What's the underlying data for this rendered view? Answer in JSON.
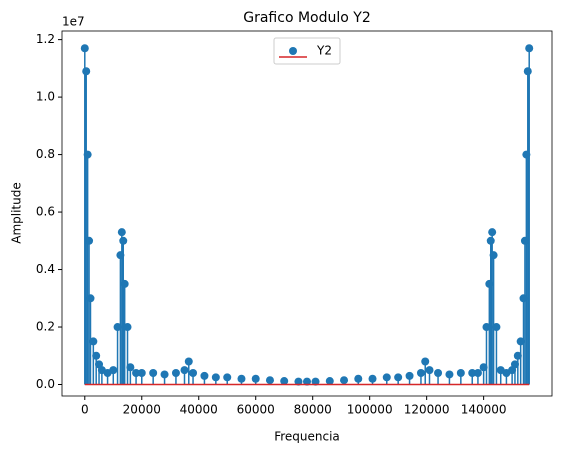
{
  "chart_data": {
    "type": "stem",
    "title": "Grafico Modulo Y2",
    "xlabel": "Frequencia",
    "ylabel": "Amplitude",
    "y_offset": "1e7",
    "x": [
      0,
      500,
      1000,
      1500,
      2000,
      3000,
      4000,
      5000,
      6000,
      8000,
      10000,
      11500,
      12500,
      13000,
      13500,
      14000,
      15000,
      16000,
      18000,
      20000,
      24000,
      28000,
      32000,
      35000,
      36500,
      38000,
      42000,
      46000,
      50000,
      55000,
      60000,
      65000,
      70000,
      75000,
      78000,
      81000,
      86000,
      91000,
      96000,
      101000,
      106000,
      110000,
      114000,
      118000,
      119500,
      121000,
      124000,
      128000,
      132000,
      136000,
      138000,
      140000,
      141000,
      142000,
      142500,
      143000,
      143500,
      144500,
      146000,
      148000,
      150000,
      151000,
      152000,
      153000,
      154000,
      154500,
      155000,
      155500,
      156000
    ],
    "series": [
      {
        "name": "Y2",
        "color": "#1f77b4",
        "baseline_color": "#d62728",
        "values": [
          1.17,
          1.09,
          0.8,
          0.5,
          0.3,
          0.15,
          0.1,
          0.07,
          0.05,
          0.04,
          0.05,
          0.2,
          0.45,
          0.53,
          0.5,
          0.35,
          0.2,
          0.06,
          0.04,
          0.04,
          0.04,
          0.035,
          0.04,
          0.05,
          0.08,
          0.04,
          0.03,
          0.025,
          0.025,
          0.02,
          0.02,
          0.015,
          0.012,
          0.01,
          0.01,
          0.01,
          0.012,
          0.015,
          0.02,
          0.02,
          0.025,
          0.025,
          0.03,
          0.04,
          0.08,
          0.05,
          0.04,
          0.035,
          0.04,
          0.04,
          0.04,
          0.06,
          0.2,
          0.35,
          0.5,
          0.53,
          0.45,
          0.2,
          0.05,
          0.04,
          0.05,
          0.07,
          0.1,
          0.15,
          0.3,
          0.5,
          0.8,
          1.09,
          1.17
        ]
      }
    ],
    "xlim": [
      -8000,
      164000
    ],
    "xticks": [
      0,
      20000,
      40000,
      60000,
      80000,
      100000,
      120000,
      140000
    ],
    "ylim": [
      -0.04,
      1.23
    ],
    "yticks": [
      {
        "value": 0,
        "label": "0.0"
      },
      0.2,
      0.4,
      0.6,
      0.8,
      {
        "value": 1,
        "label": "1.0"
      },
      1.2
    ],
    "legend": "upper center",
    "grid": false
  }
}
